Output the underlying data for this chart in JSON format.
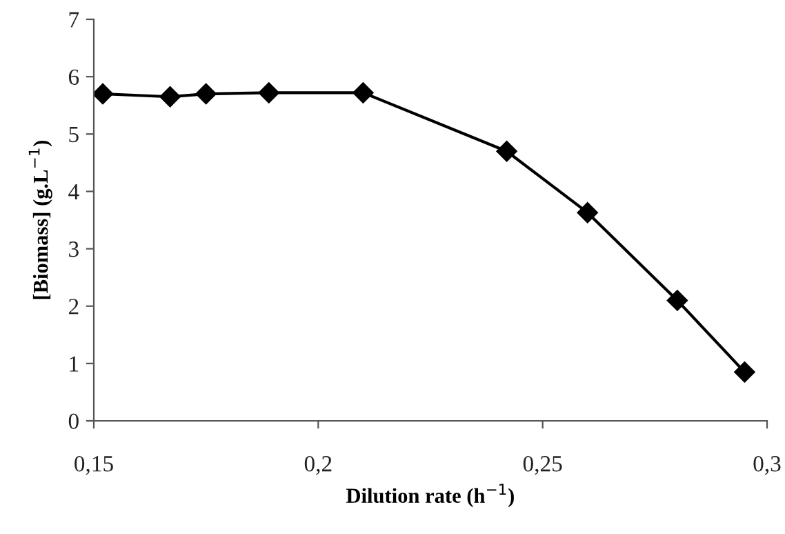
{
  "chart_data": {
    "type": "line",
    "xlabel": "Dilution rate (h$^{−1}$)",
    "ylabel": "[Biomass] (g.L$^{−1}$)",
    "x": [
      0.152,
      0.167,
      0.175,
      0.189,
      0.21,
      0.242,
      0.26,
      0.28,
      0.295
    ],
    "series": [
      {
        "color": "#000000",
        "values": [
          5.7,
          5.65,
          5.7,
          5.72,
          5.72,
          4.7,
          3.63,
          2.1,
          0.85
        ]
      }
    ],
    "marker": "diamond",
    "line_style": "solid",
    "grid": false,
    "legend": false,
    "xlim": [
      0.15,
      0.3
    ],
    "xticks": [
      {
        "value": 0.15,
        "label": "0,15"
      },
      {
        "value": 0.2,
        "label": "0,2"
      },
      {
        "value": 0.25,
        "label": "0,25"
      },
      {
        "value": 0.3,
        "label": "0,3"
      }
    ],
    "ylim": [
      0,
      7
    ],
    "yticks": [
      0,
      1,
      2,
      3,
      4,
      5,
      6,
      7
    ]
  }
}
